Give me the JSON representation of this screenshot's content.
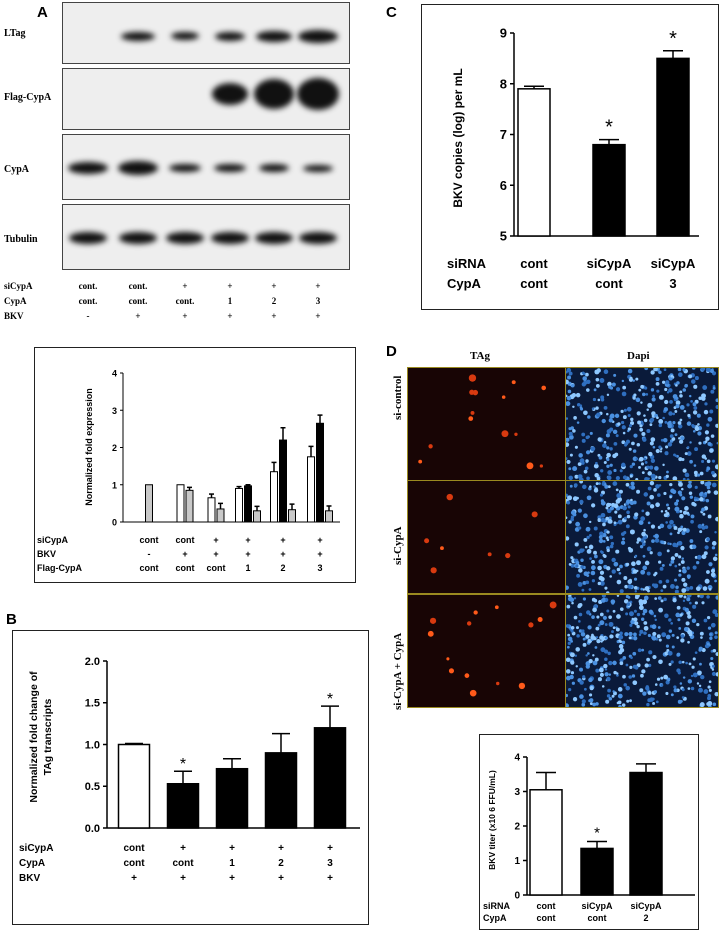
{
  "panel_labels": {
    "a": "A",
    "b": "B",
    "c": "C",
    "d": "D"
  },
  "panel_a": {
    "blot_labels": [
      "LTag",
      "Flag-CypA",
      "CypA",
      "Tubulin"
    ],
    "lanes": [
      {
        "sicypa": "cont.",
        "cypa": "cont.",
        "bkv": "-"
      },
      {
        "sicypa": "cont.",
        "cypa": "cont.",
        "bkv": "+"
      },
      {
        "sicypa": "+",
        "cypa": "cont.",
        "bkv": "+"
      },
      {
        "sicypa": "+",
        "cypa": "1",
        "bkv": "+"
      },
      {
        "sicypa": "+",
        "cypa": "2",
        "bkv": "+"
      },
      {
        "sicypa": "+",
        "cypa": "3",
        "bkv": "+"
      }
    ],
    "row_labels": [
      "siCypA",
      "CypA",
      "BKV"
    ]
  },
  "panel_d": {
    "col_labels": [
      "TAg",
      "Dapi"
    ],
    "row_labels": [
      "si-control",
      "si-CypA",
      "si-CypA + CypA"
    ]
  },
  "chart_data": [
    {
      "id": "quant",
      "type": "bar",
      "ylabel": "Normalized fold expression",
      "ylim": [
        0,
        4
      ],
      "yticks": [
        "0",
        "1",
        "2",
        "3",
        "4"
      ],
      "groups": [
        {
          "bars": [
            {
              "value": 1.0,
              "err": 0,
              "color": "#c9c9c9"
            }
          ]
        },
        {
          "bars": [
            {
              "value": 1.0,
              "err": 0,
              "color": "#ffffff"
            },
            {
              "value": 0.85,
              "err": 0.08,
              "color": "#c9c9c9"
            }
          ]
        },
        {
          "bars": [
            {
              "value": 0.65,
              "err": 0.1,
              "color": "#ffffff"
            },
            {
              "value": 0.35,
              "err": 0.15,
              "color": "#c9c9c9"
            }
          ]
        },
        {
          "bars": [
            {
              "value": 0.9,
              "err": 0.05,
              "color": "#ffffff"
            },
            {
              "value": 0.97,
              "err": 0.03,
              "color": "#000000"
            },
            {
              "value": 0.3,
              "err": 0.12,
              "color": "#c9c9c9"
            }
          ]
        },
        {
          "bars": [
            {
              "value": 1.35,
              "err": 0.25,
              "color": "#ffffff"
            },
            {
              "value": 2.2,
              "err": 0.33,
              "color": "#000000"
            },
            {
              "value": 0.33,
              "err": 0.15,
              "color": "#c9c9c9"
            }
          ]
        },
        {
          "bars": [
            {
              "value": 1.75,
              "err": 0.28,
              "color": "#ffffff"
            },
            {
              "value": 2.65,
              "err": 0.22,
              "color": "#000000"
            },
            {
              "value": 0.3,
              "err": 0.13,
              "color": "#c9c9c9"
            }
          ]
        }
      ],
      "row_labels": [
        "siCypA",
        "BKV",
        "Flag-CypA"
      ],
      "table": [
        [
          "cont",
          "-",
          "cont"
        ],
        [
          "cont",
          "+",
          "cont"
        ],
        [
          "+",
          "+",
          "cont"
        ],
        [
          "+",
          "+",
          "1"
        ],
        [
          "+",
          "+",
          "2"
        ],
        [
          "+",
          "+",
          "3"
        ]
      ]
    },
    {
      "id": "b",
      "type": "bar",
      "ylabel": [
        "Normalized fold change of",
        "TAg transcripts"
      ],
      "ylim": [
        0,
        2.0
      ],
      "yticks": [
        "0.0",
        "0.5",
        "1.0",
        "1.5",
        "2.0"
      ],
      "values": [
        1.0,
        0.53,
        0.71,
        0.9,
        1.2
      ],
      "errors": [
        0,
        0.15,
        0.12,
        0.23,
        0.26
      ],
      "colors": [
        "#ffffff",
        "#000000",
        "#000000",
        "#000000",
        "#000000"
      ],
      "stars": [
        "",
        "*",
        "",
        "",
        "*"
      ],
      "row_labels": [
        "siCypA",
        "CypA",
        "BKV"
      ],
      "table": [
        [
          "cont",
          "cont",
          "+"
        ],
        [
          "+",
          "cont",
          "+"
        ],
        [
          "+",
          "1",
          "+"
        ],
        [
          "+",
          "2",
          "+"
        ],
        [
          "+",
          "3",
          "+"
        ]
      ]
    },
    {
      "id": "c",
      "type": "bar",
      "ylabel": "BKV copies (log) per mL",
      "ylim": [
        5,
        9
      ],
      "yticks": [
        "5",
        "6",
        "7",
        "8",
        "9"
      ],
      "values": [
        7.9,
        6.8,
        8.5
      ],
      "errors": [
        0.05,
        0.1,
        0.15
      ],
      "colors": [
        "#ffffff",
        "#000000",
        "#000000"
      ],
      "stars": [
        "",
        "*",
        "*"
      ],
      "row_labels": [
        "siRNA",
        "CypA"
      ],
      "table": [
        [
          "cont",
          "cont"
        ],
        [
          "siCypA",
          "cont"
        ],
        [
          "siCypA",
          "3"
        ]
      ]
    },
    {
      "id": "d",
      "type": "bar",
      "ylabel": "BKV titer (x10 6 FFU/mL)",
      "ylim": [
        0,
        4
      ],
      "yticks": [
        "0",
        "1",
        "2",
        "3",
        "4"
      ],
      "values": [
        3.05,
        1.35,
        3.55
      ],
      "errors": [
        0.5,
        0.2,
        0.25
      ],
      "colors": [
        "#ffffff",
        "#000000",
        "#000000"
      ],
      "stars": [
        "",
        "*",
        ""
      ],
      "row_labels": [
        "siRNA",
        "CypA"
      ],
      "table": [
        [
          "cont",
          "cont"
        ],
        [
          "siCypA",
          "cont"
        ],
        [
          "siCypA",
          "2"
        ]
      ]
    }
  ]
}
